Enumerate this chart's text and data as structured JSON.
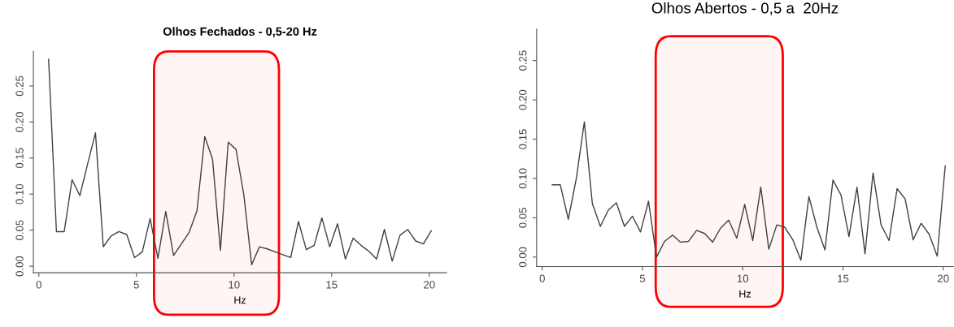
{
  "chart_data": [
    {
      "type": "line",
      "title": "Olhos Fechados - 0,5-20 Hz",
      "xlabel": "Hz",
      "x": [
        0.5,
        0.9,
        1.3,
        1.7,
        2.1,
        2.5,
        2.9,
        3.3,
        3.7,
        4.1,
        4.5,
        4.9,
        5.3,
        5.7,
        6.1,
        6.5,
        6.9,
        7.3,
        7.7,
        8.1,
        8.5,
        8.9,
        9.3,
        9.7,
        10.1,
        10.5,
        10.9,
        11.3,
        11.7,
        12.1,
        12.5,
        12.9,
        13.3,
        13.7,
        14.1,
        14.5,
        14.9,
        15.3,
        15.7,
        16.1,
        16.5,
        16.9,
        17.3,
        17.7,
        18.1,
        18.5,
        18.9,
        19.3,
        19.7,
        20.1
      ],
      "series": [
        {
          "color": "#404040",
          "values": [
            0.287,
            0.048,
            0.048,
            0.12,
            0.098,
            0.142,
            0.185,
            0.027,
            0.042,
            0.048,
            0.044,
            0.012,
            0.02,
            0.066,
            0.011,
            0.076,
            0.015,
            0.031,
            0.047,
            0.077,
            0.18,
            0.148,
            0.022,
            0.172,
            0.162,
            0.099,
            0.002,
            0.027,
            0.024,
            0.02,
            0.016,
            0.012,
            0.062,
            0.023,
            0.029,
            0.067,
            0.027,
            0.059,
            0.01,
            0.039,
            0.029,
            0.021,
            0.01,
            0.051,
            0.007,
            0.043,
            0.051,
            0.035,
            0.031,
            0.049
          ]
        }
      ],
      "xlim": [
        -0.28,
        20.88
      ],
      "ylim": [
        -0.009,
        0.298
      ],
      "xticks": [
        0,
        5,
        10,
        15,
        20
      ],
      "yticks": [
        {
          "value": 0,
          "label": "0.00"
        },
        {
          "value": 0.05,
          "label": "0.05"
        },
        {
          "value": 0.1,
          "label": "0.10"
        },
        {
          "value": 0.15,
          "label": "0.15"
        },
        {
          "value": 0.2,
          "label": "0.20"
        },
        {
          "value": 0.25,
          "label": "0.25"
        }
      ],
      "bands": [
        {
          "axis": "x",
          "from": 5.9,
          "to": 12.3,
          "color": "#ff0000"
        }
      ]
    },
    {
      "type": "line",
      "title": "Olhos Abertos - 0,5 a  20Hz",
      "xlabel": "Hz",
      "x": [
        0.5,
        0.9,
        1.3,
        1.7,
        2.1,
        2.5,
        2.9,
        3.3,
        3.7,
        4.1,
        4.5,
        4.9,
        5.3,
        5.7,
        6.1,
        6.5,
        6.9,
        7.3,
        7.7,
        8.1,
        8.5,
        8.9,
        9.3,
        9.7,
        10.1,
        10.5,
        10.9,
        11.3,
        11.7,
        12.1,
        12.5,
        12.9,
        13.3,
        13.7,
        14.1,
        14.5,
        14.9,
        15.3,
        15.7,
        16.1,
        16.5,
        16.9,
        17.3,
        17.7,
        18.1,
        18.5,
        18.9,
        19.3,
        19.7,
        20.1
      ],
      "series": [
        {
          "color": "#404040",
          "values": [
            0.092,
            0.092,
            0.048,
            0.1,
            0.172,
            0.068,
            0.039,
            0.06,
            0.069,
            0.039,
            0.052,
            0.032,
            0.071,
            0.0,
            0.02,
            0.028,
            0.019,
            0.02,
            0.034,
            0.03,
            0.019,
            0.037,
            0.047,
            0.024,
            0.067,
            0.021,
            0.089,
            0.01,
            0.041,
            0.038,
            0.022,
            -0.004,
            0.077,
            0.038,
            0.009,
            0.098,
            0.079,
            0.026,
            0.089,
            0.004,
            0.107,
            0.041,
            0.021,
            0.087,
            0.074,
            0.022,
            0.043,
            0.029,
            0.001,
            0.116
          ]
        }
      ],
      "xlim": [
        -0.28,
        20.5
      ],
      "ylim": [
        -0.012,
        0.29
      ],
      "xticks": [
        0,
        5,
        10,
        15,
        20
      ],
      "yticks": [
        {
          "value": 0,
          "label": "0.00"
        },
        {
          "value": 0.05,
          "label": "0.05"
        },
        {
          "value": 0.1,
          "label": "0.10"
        },
        {
          "value": 0.15,
          "label": "0.15"
        },
        {
          "value": 0.2,
          "label": "0.20"
        },
        {
          "value": 0.25,
          "label": "0.25"
        }
      ],
      "bands": [
        {
          "axis": "x",
          "from": 5.66,
          "to": 12.0,
          "color": "#ff0000"
        }
      ]
    }
  ]
}
